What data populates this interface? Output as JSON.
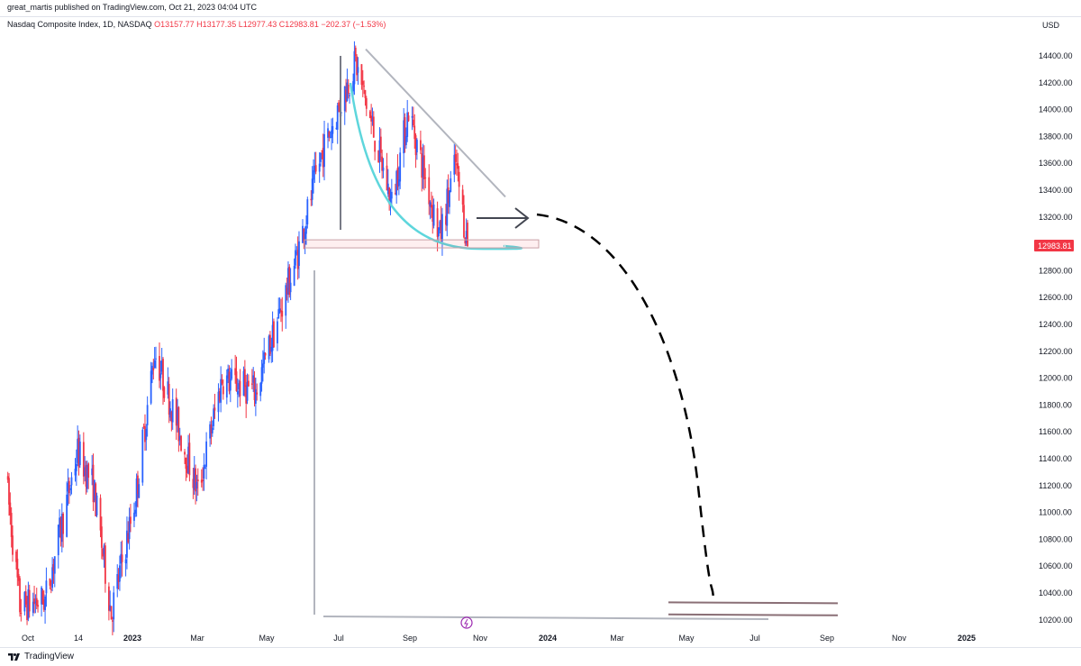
{
  "header": {
    "published_by": "great_martis published on TradingView.com, Oct 21, 2023 04:04 UTC"
  },
  "legend": {
    "symbol": "Nasdaq Composite Index, 1D, NASDAQ",
    "open": "O13157.77",
    "high": "H13177.35",
    "low": "L12977.43",
    "close": "C12983.81",
    "change": "−202.37 (−1.53%)"
  },
  "price_axis": {
    "currency": "USD",
    "last_price_label": "12983.81",
    "last_price_color": "#f23645"
  },
  "footer": {
    "brand": "TradingView",
    "logo_icon": "tradingview-logo-icon"
  },
  "colors": {
    "up": "#2962ff",
    "down": "#f23645",
    "curve": "#5ed6dc",
    "trendline": "#b2b5be",
    "projection": "#000000"
  },
  "chart_data": {
    "type": "candlestick",
    "title": "Nasdaq Composite Index, 1D, NASDAQ",
    "x": [
      "Oct",
      "14",
      "2023",
      "Mar",
      "May",
      "Jul",
      "Sep",
      "Nov",
      "2024",
      "Mar",
      "May",
      "Jul",
      "Sep",
      "Nov",
      "2025"
    ],
    "x_bold": [
      "2023",
      "2024",
      "2025"
    ],
    "y_ticks": [
      "14400.00",
      "14200.00",
      "14000.00",
      "13800.00",
      "13600.00",
      "13400.00",
      "13200.00",
      "13000.00",
      "12800.00",
      "12600.00",
      "12400.00",
      "12200.00",
      "12000.00",
      "11800.00",
      "11600.00",
      "11400.00",
      "11200.00",
      "11000.00",
      "10800.00",
      "10600.00",
      "10400.00",
      "10200.00"
    ],
    "ylim": [
      10100,
      14550
    ],
    "price_path": [
      [
        "2022-10-01",
        11300
      ],
      [
        "2022-10-13",
        10300
      ],
      [
        "2022-11-03",
        10350
      ],
      [
        "2022-11-30",
        11450
      ],
      [
        "2022-12-13",
        11200
      ],
      [
        "2022-12-28",
        10250
      ],
      [
        "2023-01-17",
        11100
      ],
      [
        "2023-02-02",
        12200
      ],
      [
        "2023-03-10",
        11150
      ],
      [
        "2023-03-30",
        12000
      ],
      [
        "2023-04-27",
        11900
      ],
      [
        "2023-05-31",
        12900
      ],
      [
        "2023-06-20",
        13650
      ],
      [
        "2023-07-19",
        14350
      ],
      [
        "2023-08-18",
        13300
      ],
      [
        "2023-09-01",
        14000
      ],
      [
        "2023-09-27",
        13050
      ],
      [
        "2023-10-10",
        13600
      ],
      [
        "2023-10-20",
        12983.81
      ]
    ],
    "annotations": {
      "triangle_upper_line": [
        [
          "2023-07-15",
          14450
        ],
        [
          "2023-11-10",
          13350
        ]
      ],
      "cup_curve_low": 12960,
      "support_zone": [
        12970,
        13030
      ],
      "target_zone": [
        10240,
        10330
      ],
      "projection": "dashed arc from Nov 2023 down to Jun 2024"
    }
  }
}
